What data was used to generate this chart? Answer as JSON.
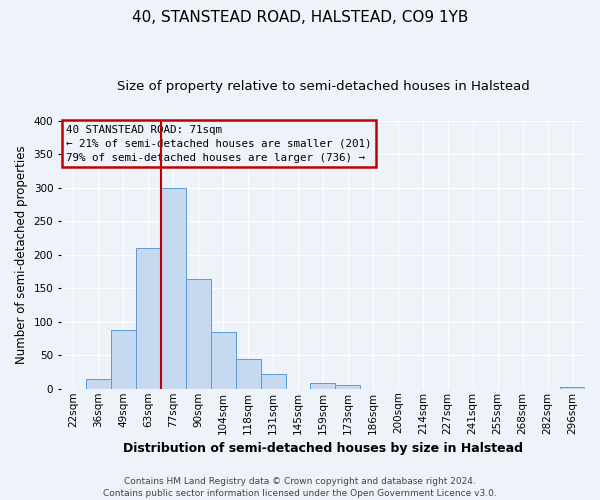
{
  "title": "40, STANSTEAD ROAD, HALSTEAD, CO9 1YB",
  "subtitle": "Size of property relative to semi-detached houses in Halstead",
  "xlabel": "Distribution of semi-detached houses by size in Halstead",
  "ylabel": "Number of semi-detached properties",
  "bin_labels": [
    "22sqm",
    "36sqm",
    "49sqm",
    "63sqm",
    "77sqm",
    "90sqm",
    "104sqm",
    "118sqm",
    "131sqm",
    "145sqm",
    "159sqm",
    "173sqm",
    "186sqm",
    "200sqm",
    "214sqm",
    "227sqm",
    "241sqm",
    "255sqm",
    "268sqm",
    "282sqm",
    "296sqm"
  ],
  "bar_values": [
    0,
    15,
    87,
    210,
    300,
    163,
    85,
    45,
    22,
    0,
    9,
    5,
    0,
    0,
    0,
    0,
    0,
    0,
    0,
    0,
    3
  ],
  "bar_color": "#c6d9f0",
  "bar_edge_color": "#5b9bd5",
  "highlight_bin_index": 3,
  "highlight_line_color": "#c00000",
  "annotation_text_line1": "40 STANSTEAD ROAD: 71sqm",
  "annotation_text_line2": "← 21% of semi-detached houses are smaller (201)",
  "annotation_text_line3": "79% of semi-detached houses are larger (736) →",
  "annotation_box_color": "#c00000",
  "ylim": [
    0,
    400
  ],
  "yticks": [
    0,
    50,
    100,
    150,
    200,
    250,
    300,
    350,
    400
  ],
  "footer_line1": "Contains HM Land Registry data © Crown copyright and database right 2024.",
  "footer_line2": "Contains public sector information licensed under the Open Government Licence v3.0.",
  "bg_color": "#eef2f9",
  "grid_color": "#ffffff",
  "title_fontsize": 11,
  "subtitle_fontsize": 9.5,
  "ylabel_fontsize": 8.5,
  "xlabel_fontsize": 9,
  "tick_fontsize": 7.5,
  "footer_fontsize": 6.5
}
